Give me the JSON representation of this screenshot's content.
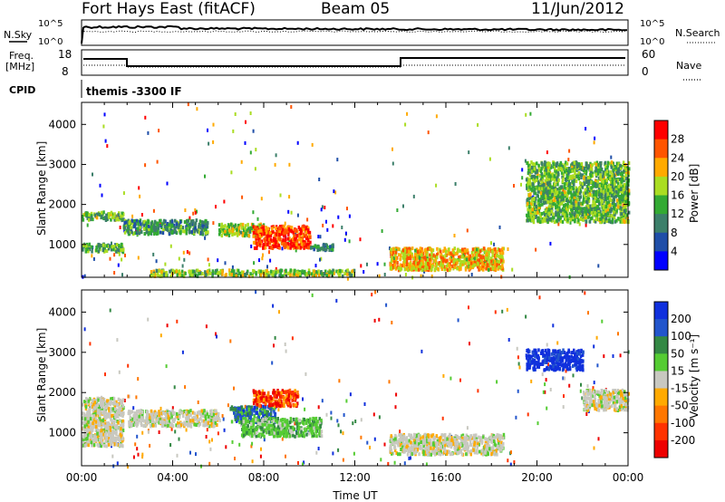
{
  "header": {
    "station": "Fort Hays East (fitACF)",
    "beam": "Beam 05",
    "date": "11/Jun/2012"
  },
  "status_panels": {
    "nsky_label": "N.Sky",
    "nsky_ticks": [
      "10^5",
      "10^0"
    ],
    "nsearch_label": "N.Search",
    "nsearch_ticks": [
      "10^5",
      "10^0"
    ],
    "freq_label": "Freq.",
    "freq_unit": "[MHz]",
    "freq_ticks": [
      "18",
      "8"
    ],
    "nave_label": "Nave",
    "nave_ticks": [
      "60",
      "0"
    ],
    "cpid_label": "CPID",
    "cpid_text": "themis -3300 IF"
  },
  "chart_data": [
    {
      "type": "heatmap",
      "name": "power",
      "ylabel": "Slant Range [km]",
      "xlabel": "",
      "y_ticks": [
        "1000",
        "2000",
        "3000",
        "4000"
      ],
      "colorbar_label": "Power [dB]",
      "colorbar_ticks": [
        "28",
        "24",
        "20",
        "16",
        "12",
        "8",
        "4"
      ],
      "colors": [
        "#0000ff",
        "#1f4ea8",
        "#3c7f6a",
        "#33aa33",
        "#aadd22",
        "#ffaa00",
        "#ff5500",
        "#ff0000"
      ],
      "regions": [
        {
          "t0": 0.0,
          "t1": 1.8,
          "r0": 1650,
          "r1": 1850,
          "level": 0.45
        },
        {
          "t0": 0.0,
          "t1": 1.8,
          "r0": 850,
          "r1": 1050,
          "level": 0.4
        },
        {
          "t0": 1.8,
          "t1": 5.5,
          "r0": 1300,
          "r1": 1650,
          "level": 0.35
        },
        {
          "t0": 6.0,
          "t1": 8.0,
          "r0": 1250,
          "r1": 1550,
          "level": 0.55
        },
        {
          "t0": 7.5,
          "t1": 10.0,
          "r0": 950,
          "r1": 1500,
          "level": 0.9
        },
        {
          "t0": 10.0,
          "t1": 11.0,
          "r0": 900,
          "r1": 1050,
          "level": 0.3
        },
        {
          "t0": 13.5,
          "t1": 18.5,
          "r0": 400,
          "r1": 950,
          "level": 0.7
        },
        {
          "t0": 19.5,
          "t1": 24.0,
          "r0": 1600,
          "r1": 3100,
          "level": 0.45
        },
        {
          "t0": 3.0,
          "t1": 12.0,
          "r0": 250,
          "r1": 400,
          "level": 0.5
        }
      ]
    },
    {
      "type": "heatmap",
      "name": "velocity",
      "ylabel": "Slant Range [km]",
      "xlabel": "Time UT",
      "y_ticks": [
        "1000",
        "2000",
        "3000",
        "4000"
      ],
      "x_ticks": [
        "00:00",
        "04:00",
        "08:00",
        "12:00",
        "16:00",
        "20:00",
        "00:00"
      ],
      "colorbar_label": "Velocity [m s⁻¹]",
      "colorbar_ticks": [
        "200",
        "100",
        "50",
        "15",
        "-15",
        "-50",
        "-100",
        "-200"
      ],
      "colors": [
        "#1030dd",
        "#2255cc",
        "#338844",
        "#55cc33",
        "#c8c8c0",
        "#ffaa00",
        "#ff7700",
        "#ff3300",
        "#ee0000"
      ],
      "regions": [
        {
          "t0": 0.0,
          "t1": 1.8,
          "r0": 700,
          "r1": 1900,
          "level": "-15..15"
        },
        {
          "t0": 2.0,
          "t1": 6.0,
          "r0": 1200,
          "r1": 1600,
          "level": "-15..15"
        },
        {
          "t0": 6.5,
          "t1": 8.5,
          "r0": 1300,
          "r1": 1700,
          "level": "100..200"
        },
        {
          "t0": 7.0,
          "t1": 10.5,
          "r0": 950,
          "r1": 1400,
          "level": "15..50"
        },
        {
          "t0": 7.5,
          "t1": 9.5,
          "r0": 1700,
          "r1": 2100,
          "level": "-50..-200"
        },
        {
          "t0": 13.5,
          "t1": 18.5,
          "r0": 500,
          "r1": 1000,
          "level": "-15..15"
        },
        {
          "t0": 19.5,
          "t1": 22.0,
          "r0": 2600,
          "r1": 3100,
          "level": "200"
        },
        {
          "t0": 22.0,
          "t1": 24.0,
          "r0": 1600,
          "r1": 2100,
          "level": "-15..15"
        }
      ]
    }
  ]
}
